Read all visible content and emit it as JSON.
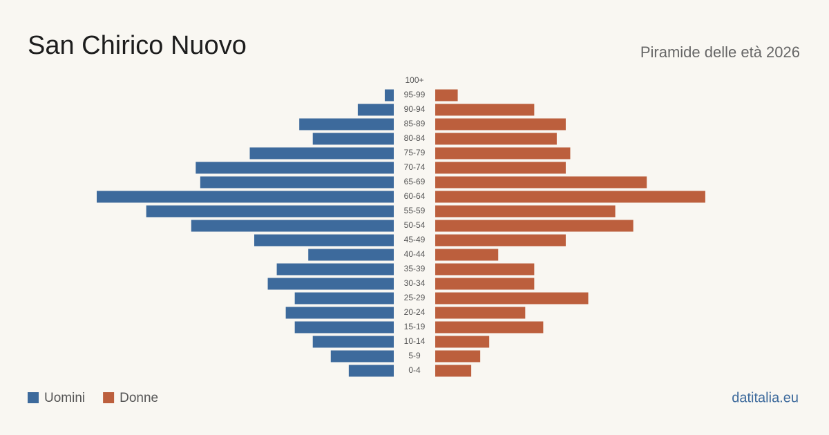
{
  "chart_data": {
    "type": "pyramid",
    "title": "San Chirico Nuovo",
    "subtitle": "Piramide delle età 2026",
    "categories": [
      "100+",
      "95-99",
      "90-94",
      "85-89",
      "80-84",
      "75-79",
      "70-74",
      "65-69",
      "60-64",
      "55-59",
      "50-54",
      "45-49",
      "40-44",
      "35-39",
      "30-34",
      "25-29",
      "20-24",
      "15-19",
      "10-14",
      "5-9",
      "0-4"
    ],
    "series": [
      {
        "name": "Uomini",
        "color": "#3d6a9c",
        "values": [
          0,
          2,
          8,
          21,
          18,
          32,
          44,
          43,
          66,
          55,
          45,
          31,
          19,
          26,
          28,
          22,
          24,
          22,
          18,
          14,
          10
        ]
      },
      {
        "name": "Donne",
        "color": "#bc5f3d",
        "values": [
          0,
          5,
          22,
          29,
          27,
          30,
          29,
          47,
          60,
          40,
          44,
          29,
          14,
          22,
          22,
          34,
          20,
          24,
          12,
          10,
          8
        ]
      }
    ],
    "source": "datitalia.eu"
  }
}
